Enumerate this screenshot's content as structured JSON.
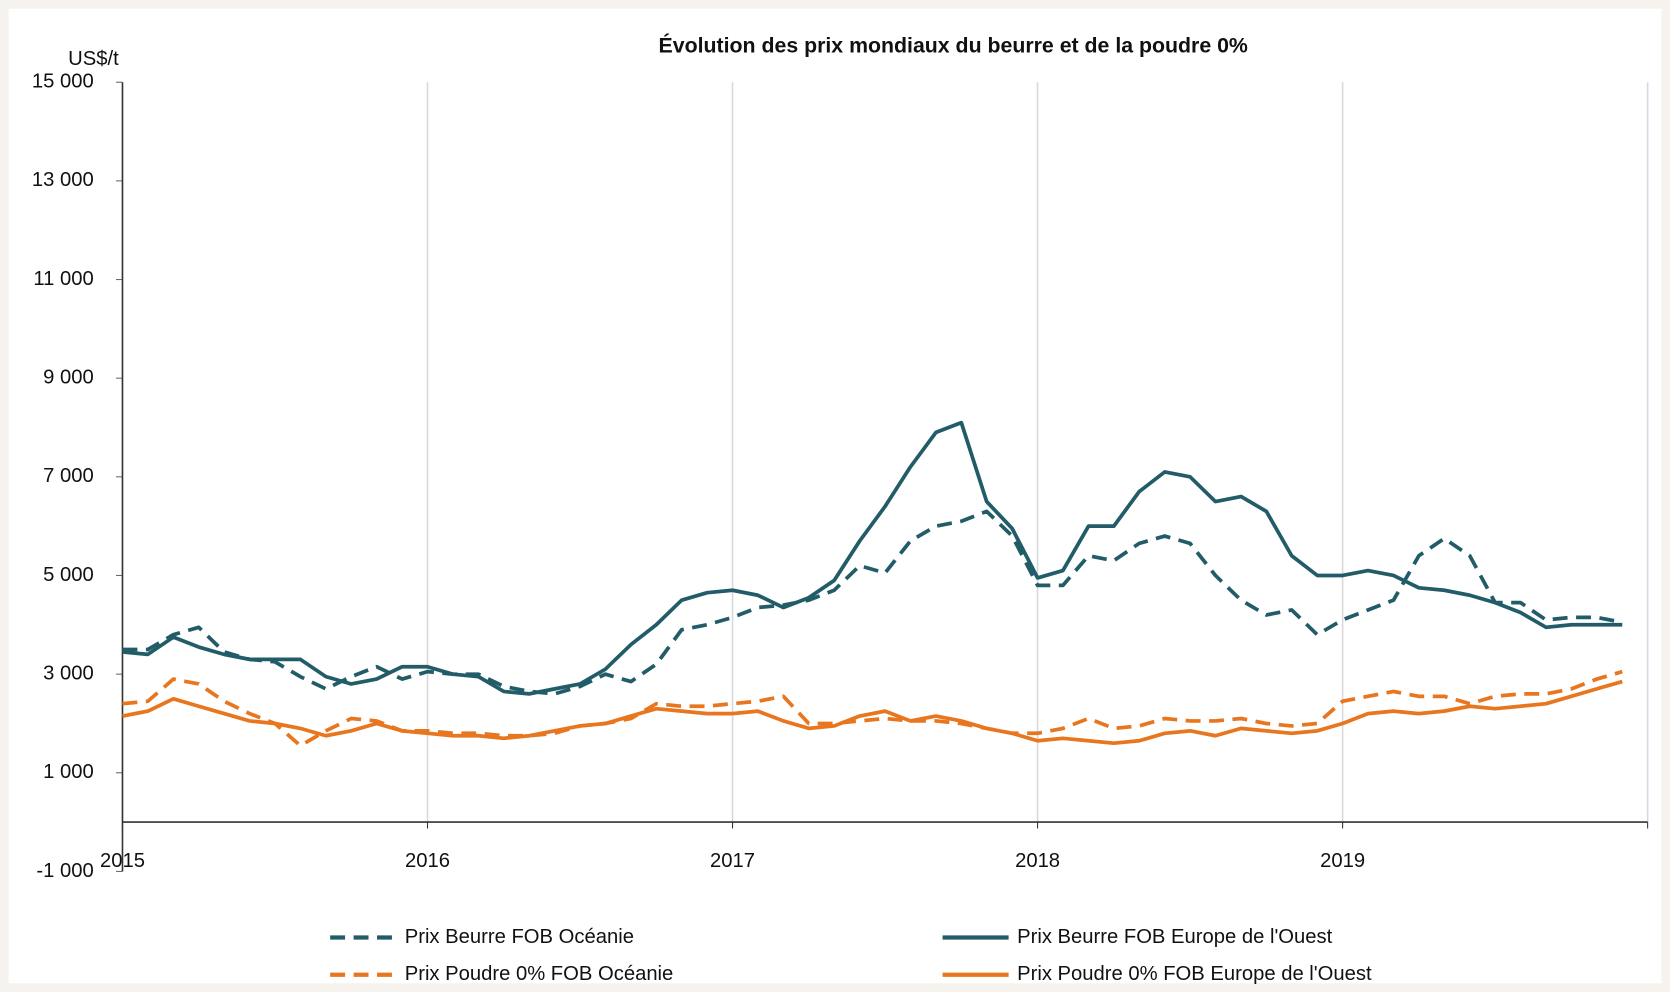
{
  "chart_data": {
    "type": "line",
    "title": "Évolution des prix mondiaux du beurre et de la poudre 0%",
    "y_label": "US$/t",
    "x": [
      2015.0,
      2015.083,
      2015.167,
      2015.25,
      2015.333,
      2015.417,
      2015.5,
      2015.583,
      2015.667,
      2015.75,
      2015.833,
      2015.917,
      2016.0,
      2016.083,
      2016.167,
      2016.25,
      2016.333,
      2016.417,
      2016.5,
      2016.583,
      2016.667,
      2016.75,
      2016.833,
      2016.917,
      2017.0,
      2017.083,
      2017.167,
      2017.25,
      2017.333,
      2017.417,
      2017.5,
      2017.583,
      2017.667,
      2017.75,
      2017.833,
      2017.917,
      2018.0,
      2018.083,
      2018.167,
      2018.25,
      2018.333,
      2018.417,
      2018.5,
      2018.583,
      2018.667,
      2018.75,
      2018.833,
      2018.917,
      2019.0,
      2019.083,
      2019.167,
      2019.25,
      2019.333,
      2019.417,
      2019.5,
      2019.583,
      2019.667,
      2019.75,
      2019.833,
      2019.917
    ],
    "xlim": [
      2015,
      2020
    ],
    "xticks": [
      2015,
      2016,
      2017,
      2018,
      2019
    ],
    "ylim": [
      -1000,
      15000
    ],
    "yticks": [
      {
        "value": -1000,
        "label": "-1 000"
      },
      {
        "value": 1000,
        "label": "1 000"
      },
      {
        "value": 3000,
        "label": "3 000"
      },
      {
        "value": 5000,
        "label": "5 000"
      },
      {
        "value": 7000,
        "label": "7 000"
      },
      {
        "value": 9000,
        "label": "9 000"
      },
      {
        "value": 11000,
        "label": "11 000"
      },
      {
        "value": 13000,
        "label": "13 000"
      },
      {
        "value": 15000,
        "label": "15 000"
      }
    ],
    "grid": true,
    "legend": "bottom",
    "series": [
      {
        "name": "Prix Beurre FOB Océanie",
        "color": "#215c68",
        "dashed": true,
        "values": [
          3500,
          3500,
          3800,
          3950,
          3450,
          3300,
          3250,
          2950,
          2700,
          2950,
          3150,
          2900,
          3050,
          3000,
          3000,
          2750,
          2650,
          2600,
          2750,
          3000,
          2850,
          3200,
          3900,
          4000,
          4150,
          4350,
          4400,
          4500,
          4700,
          5200,
          5050,
          5700,
          6000,
          6100,
          6300,
          5800,
          4800,
          4800,
          5400,
          5300,
          5650,
          5800,
          5650,
          5000,
          4500,
          4200,
          4300,
          3800,
          4100,
          4300,
          4500,
          5400,
          5750,
          5400,
          4450,
          4450,
          4100,
          4150,
          4150,
          4050
        ]
      },
      {
        "name": "Prix Beurre FOB Europe de l'Ouest",
        "color": "#215c68",
        "dashed": false,
        "values": [
          3450,
          3400,
          3750,
          3550,
          3400,
          3300,
          3300,
          3300,
          2950,
          2800,
          2900,
          3150,
          3150,
          3000,
          2950,
          2650,
          2600,
          2700,
          2800,
          3100,
          3600,
          4000,
          4500,
          4650,
          4700,
          4600,
          4350,
          4550,
          4900,
          5700,
          6400,
          7200,
          7900,
          8100,
          6500,
          5950,
          4950,
          5100,
          6000,
          6000,
          6700,
          7100,
          7000,
          6500,
          6600,
          6300,
          5400,
          5000,
          5000,
          5100,
          5000,
          4750,
          4700,
          4600,
          4450,
          4250,
          3950,
          4000,
          4000,
          4000
        ]
      },
      {
        "name": "Prix Poudre 0% FOB Océanie",
        "color": "#e8761f",
        "dashed": true,
        "values": [
          2400,
          2450,
          2900,
          2800,
          2450,
          2200,
          2000,
          1550,
          1850,
          2100,
          2050,
          1850,
          1850,
          1800,
          1800,
          1750,
          1750,
          1800,
          1950,
          2000,
          2100,
          2400,
          2350,
          2350,
          2400,
          2450,
          2550,
          2000,
          2000,
          2050,
          2100,
          2050,
          2050,
          2000,
          1900,
          1800,
          1800,
          1900,
          2100,
          1900,
          1950,
          2100,
          2050,
          2050,
          2100,
          2000,
          1950,
          2000,
          2450,
          2550,
          2650,
          2550,
          2550,
          2400,
          2550,
          2600,
          2600,
          2700,
          2900,
          3050
        ]
      },
      {
        "name": "Prix Poudre 0% FOB Europe de l'Ouest",
        "color": "#e8761f",
        "dashed": false,
        "values": [
          2150,
          2250,
          2500,
          2350,
          2200,
          2050,
          2000,
          1900,
          1750,
          1850,
          2000,
          1850,
          1800,
          1750,
          1750,
          1700,
          1750,
          1850,
          1950,
          2000,
          2150,
          2300,
          2250,
          2200,
          2200,
          2250,
          2050,
          1900,
          1950,
          2150,
          2250,
          2050,
          2150,
          2050,
          1900,
          1800,
          1650,
          1700,
          1650,
          1600,
          1650,
          1800,
          1850,
          1750,
          1900,
          1850,
          1800,
          1850,
          2000,
          2200,
          2250,
          2200,
          2250,
          2350,
          2300,
          2350,
          2400,
          2550,
          2700,
          2850
        ]
      }
    ]
  }
}
